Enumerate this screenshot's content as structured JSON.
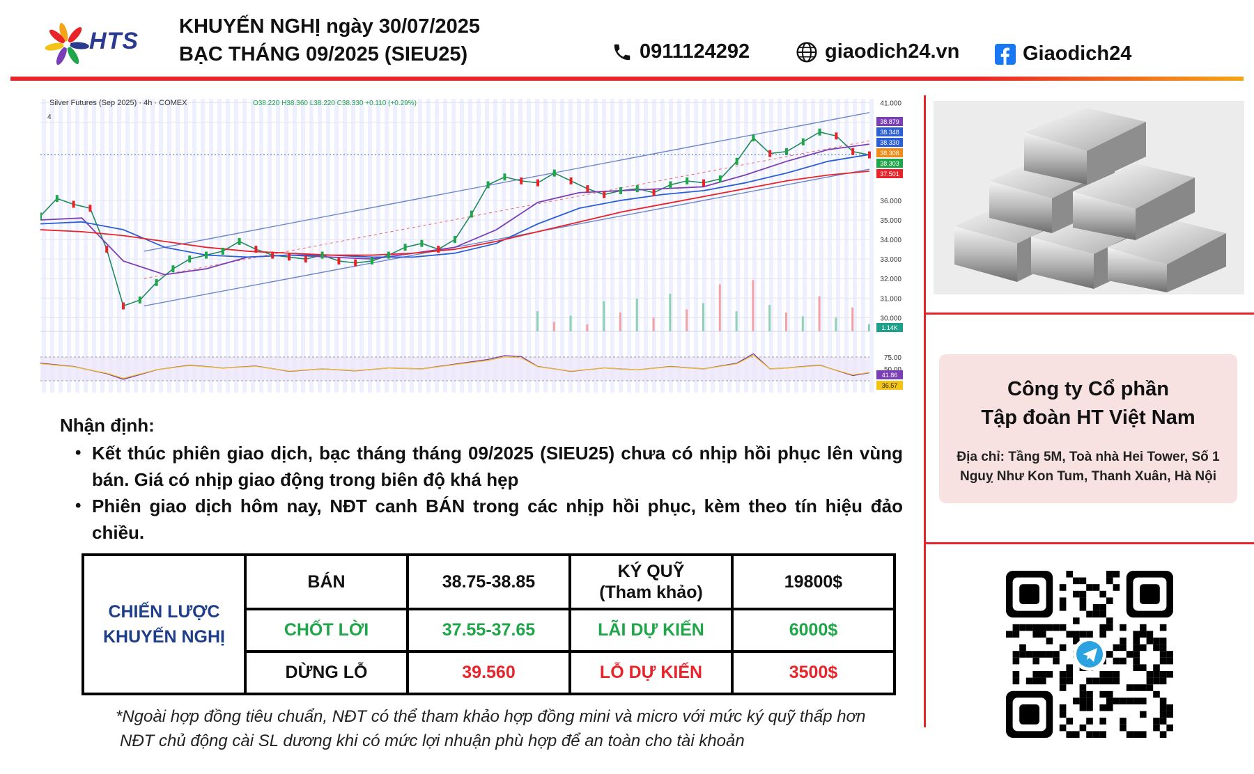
{
  "header": {
    "brand": "HTS",
    "title_line1": "KHUYẾN NGHỊ ngày 30/07/2025",
    "title_line2": "BẠC THÁNG 09/2025 (SIEU25)",
    "phone": "0911124292",
    "website": "giaodich24.vn",
    "facebook": "Giaodich24",
    "icons": [
      "phone-icon",
      "globe-icon",
      "facebook-icon"
    ]
  },
  "chart_data": {
    "type": "line",
    "title": "Silver Futures (Sep 2025) · 4h · COMEX",
    "ohlc_text": "O38.220 H38.360 L38.220 C38.330 +0.110 (+0.29%)",
    "indicator_tag": "4",
    "y_ticks": [
      "41.000",
      "40.000",
      "36.000",
      "35.000",
      "34.000",
      "33.000",
      "32.000",
      "31.000",
      "30.000"
    ],
    "ylim": [
      29.3,
      41.2
    ],
    "price_labels": [
      {
        "text": "38.879",
        "color": "#7b3fb5"
      },
      {
        "text": "38.348",
        "color": "#2c5fd4"
      },
      {
        "text": "38.330",
        "color": "#2c5fd4"
      },
      {
        "text": "38.308",
        "color": "#f08a19"
      },
      {
        "text": "38.303",
        "color": "#1fa64a"
      },
      {
        "text": "37.501",
        "color": "#e8232a"
      }
    ],
    "volume_label": "1.14K",
    "series": [
      {
        "name": "Close",
        "color": "#1f8a5a",
        "x": [
          0,
          4,
          8,
          12,
          16,
          20,
          24,
          28,
          32,
          36,
          40,
          44,
          48,
          52,
          56,
          60,
          64,
          68,
          72,
          76,
          80,
          84,
          88,
          92,
          96,
          100,
          104,
          108,
          112,
          116,
          120,
          124,
          128,
          132,
          136,
          140,
          144,
          148,
          152,
          156,
          160,
          164,
          168,
          172,
          176,
          180,
          184,
          188,
          192,
          196,
          200
        ],
        "values": [
          35.2,
          36.1,
          35.8,
          35.6,
          33.5,
          30.6,
          30.9,
          31.8,
          32.5,
          33.0,
          33.2,
          33.4,
          33.9,
          33.5,
          33.2,
          33.1,
          33.0,
          33.2,
          32.9,
          32.8,
          32.9,
          33.2,
          33.6,
          33.8,
          33.5,
          34.0,
          35.3,
          36.8,
          37.2,
          37.0,
          36.9,
          37.4,
          37.0,
          36.6,
          36.3,
          36.5,
          36.6,
          36.4,
          36.8,
          37.0,
          36.9,
          37.1,
          38.0,
          39.2,
          38.4,
          38.5,
          39.0,
          39.5,
          39.3,
          38.5,
          38.33
        ]
      },
      {
        "name": "MA 50",
        "color": "#7b3fb5",
        "x": [
          0,
          10,
          20,
          30,
          40,
          50,
          60,
          70,
          80,
          90,
          100,
          110,
          120,
          130,
          140,
          150,
          160,
          170,
          180,
          190,
          200
        ],
        "values": [
          35.0,
          35.1,
          32.9,
          32.2,
          32.5,
          33.1,
          33.2,
          33.1,
          33.0,
          33.3,
          33.6,
          34.5,
          35.9,
          36.4,
          36.5,
          36.6,
          36.7,
          37.3,
          38.0,
          38.6,
          38.88
        ]
      },
      {
        "name": "MA 100",
        "color": "#2c5fd4",
        "x": [
          0,
          10,
          20,
          30,
          40,
          50,
          60,
          70,
          80,
          90,
          100,
          110,
          120,
          130,
          140,
          150,
          160,
          170,
          180,
          190,
          200
        ],
        "values": [
          34.8,
          34.9,
          34.5,
          33.6,
          33.2,
          33.1,
          33.2,
          33.2,
          33.1,
          33.1,
          33.3,
          33.8,
          34.8,
          35.6,
          36.0,
          36.3,
          36.5,
          36.9,
          37.4,
          38.0,
          38.35
        ]
      },
      {
        "name": "MA 200",
        "color": "#e8232a",
        "x": [
          0,
          10,
          20,
          30,
          40,
          50,
          60,
          70,
          80,
          90,
          100,
          110,
          120,
          130,
          140,
          150,
          160,
          170,
          180,
          190,
          200
        ],
        "values": [
          34.5,
          34.4,
          34.2,
          33.9,
          33.6,
          33.4,
          33.3,
          33.2,
          33.2,
          33.3,
          33.5,
          33.9,
          34.4,
          34.9,
          35.4,
          35.8,
          36.2,
          36.6,
          37.0,
          37.3,
          37.5
        ]
      }
    ],
    "channel": {
      "upper": {
        "x": [
          25,
          200
        ],
        "values": [
          33.4,
          40.5
        ]
      },
      "lower": {
        "x": [
          25,
          200
        ],
        "values": [
          30.6,
          37.6
        ]
      }
    },
    "volume": {
      "x": [
        120,
        124,
        128,
        132,
        136,
        140,
        144,
        148,
        152,
        156,
        160,
        164,
        168,
        172,
        176,
        180,
        184,
        188,
        192,
        196,
        200
      ],
      "values": [
        3.2,
        1.5,
        2.5,
        1.1,
        4.8,
        3.0,
        5.2,
        2.2,
        6.0,
        3.5,
        4.5,
        7.5,
        3.2,
        8.2,
        4.2,
        3.0,
        2.4,
        5.6,
        2.2,
        3.8,
        1.14
      ]
    },
    "rsi": {
      "y_ticks": [
        "75.00",
        "50.00"
      ],
      "labels": [
        {
          "text": "41.86",
          "color": "#7b3fb5"
        },
        {
          "text": "36.57",
          "color": "#f3c316"
        }
      ],
      "x": [
        0,
        8,
        16,
        20,
        28,
        36,
        44,
        52,
        60,
        68,
        76,
        84,
        92,
        100,
        108,
        112,
        116,
        120,
        128,
        136,
        144,
        152,
        160,
        168,
        172,
        176,
        180,
        188,
        196,
        200
      ],
      "values": [
        62,
        55,
        40,
        28,
        48,
        58,
        52,
        56,
        45,
        50,
        46,
        52,
        50,
        60,
        70,
        78,
        76,
        55,
        45,
        52,
        48,
        55,
        50,
        62,
        82,
        50,
        52,
        58,
        36,
        41.86
      ]
    },
    "xlabel": "",
    "ylabel": ""
  },
  "analysis": {
    "title": "Nhận định:",
    "bullets": [
      "Kết thúc phiên giao dịch, bạc tháng tháng 09/2025 (SIEU25) chưa có nhịp hồi phục lên vùng bán. Giá có nhịp giao động trong biên độ khá hẹp",
      "Phiên giao dịch hôm nay, NĐT canh BÁN trong các nhịp hồi phục, kèm theo tín hiệu đảo chiều."
    ]
  },
  "strategy": {
    "head": "CHIẾN LƯỢC KHUYẾN NGHỊ",
    "rows": [
      [
        "BÁN",
        "38.75-38.85",
        "KÝ QUỸ (Tham khảo)",
        "19800$"
      ],
      [
        "CHỐT LỜI",
        "37.55-37.65",
        "LÃI DỰ KIẾN",
        "6000$"
      ],
      [
        "DỪNG LỖ",
        "39.560",
        "LỖ DỰ KIẾN",
        "3500$"
      ]
    ],
    "row_colors": [
      "#111111",
      "#1fa64a",
      "#e8232a"
    ]
  },
  "notes": [
    "*Ngoài hợp đồng tiêu chuẩn, NĐT có thể tham khảo hợp đồng mini và micro với mức ký quỹ thấp hơn",
    "NĐT chủ động cài SL dương khi có mức lợi nhuận phù hợp để an toàn cho tài khoản"
  ],
  "company": {
    "name_line1": "Công ty Cổ phần",
    "name_line2": "Tập đoàn HT Việt Nam",
    "address_line1": "Địa chỉ:  Tầng 5M, Toà nhà Hei Tower, Số 1",
    "address_line2": "Nguỵ Như Kon Tum, Thanh Xuân, Hà Nội"
  },
  "colors": {
    "accent_red": "#e8232a",
    "accent_orange": "#f3a516",
    "brand_blue": "#2a3b8f",
    "strategy_blue": "#1f3e8a",
    "green": "#1fa64a"
  }
}
